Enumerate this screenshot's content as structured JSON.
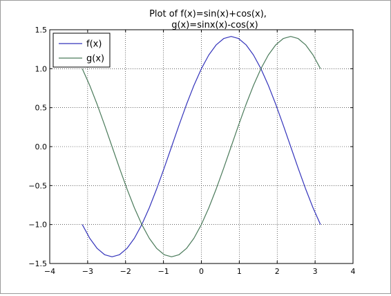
{
  "chart_data": {
    "type": "line",
    "title_lines": [
      "Plot of f(x)=sin(x)+cos(x),",
      "g(x)=sinx(x)-cos(x)"
    ],
    "xlabel": "",
    "ylabel": "",
    "xlim": [
      -4,
      4
    ],
    "ylim": [
      -1.5,
      1.5
    ],
    "xticks": [
      -4,
      -3,
      -2,
      -1,
      0,
      1,
      2,
      3,
      4
    ],
    "xtick_labels": [
      "−4",
      "−3",
      "−2",
      "−1",
      "0",
      "1",
      "2",
      "3",
      "4"
    ],
    "yticks": [
      -1.5,
      -1.0,
      -0.5,
      0.0,
      0.5,
      1.0,
      1.5
    ],
    "ytick_labels": [
      "−1.5",
      "−1.0",
      "−0.5",
      "0.0",
      "0.5",
      "1.0",
      "1.5"
    ],
    "grid": true,
    "grid_style": "dotted",
    "legend_position": "upper-left",
    "series": [
      {
        "name": "f(x)",
        "color": "#3333bb",
        "x": [
          -3.1416,
          -2.9452,
          -2.7489,
          -2.5525,
          -2.3562,
          -2.1598,
          -1.9635,
          -1.7671,
          -1.5708,
          -1.3744,
          -1.1781,
          -0.9817,
          -0.7854,
          -0.589,
          -0.3927,
          -0.1963,
          0.0,
          0.1963,
          0.3927,
          0.589,
          0.7854,
          0.9817,
          1.1781,
          1.3744,
          1.5708,
          1.7671,
          1.9635,
          2.1598,
          2.3562,
          2.5525,
          2.7489,
          2.9452,
          3.1416
        ],
        "y": [
          -1.0,
          -1.1759,
          -1.3066,
          -1.387,
          -1.4142,
          -1.387,
          -1.3066,
          -1.1759,
          -1.0,
          -0.7857,
          -0.5412,
          -0.2759,
          0.0,
          0.2759,
          0.5412,
          0.7857,
          1.0,
          1.1759,
          1.3066,
          1.387,
          1.4142,
          1.387,
          1.3066,
          1.1759,
          1.0,
          0.7857,
          0.5412,
          0.2759,
          0.0,
          -0.2759,
          -0.5412,
          -0.7857,
          -1.0
        ]
      },
      {
        "name": "g(x)",
        "color": "#4a7a5a",
        "x": [
          -3.1416,
          -2.9452,
          -2.7489,
          -2.5525,
          -2.3562,
          -2.1598,
          -1.9635,
          -1.7671,
          -1.5708,
          -1.3744,
          -1.1781,
          -0.9817,
          -0.7854,
          -0.589,
          -0.3927,
          -0.1963,
          0.0,
          0.1963,
          0.3927,
          0.589,
          0.7854,
          0.9817,
          1.1781,
          1.3744,
          1.5708,
          1.7671,
          1.9635,
          2.1598,
          2.3562,
          2.5525,
          2.7489,
          2.9452,
          3.1416
        ],
        "y": [
          1.0,
          0.7857,
          0.5412,
          0.2759,
          0.0,
          -0.2759,
          -0.5412,
          -0.7857,
          -1.0,
          -1.1759,
          -1.3066,
          -1.387,
          -1.4142,
          -1.387,
          -1.3066,
          -1.1759,
          -1.0,
          -0.7857,
          -0.5412,
          -0.2759,
          0.0,
          0.2759,
          0.5412,
          0.7857,
          1.0,
          1.1759,
          1.3066,
          1.387,
          1.4142,
          1.387,
          1.3066,
          1.1759,
          1.0
        ]
      }
    ]
  }
}
